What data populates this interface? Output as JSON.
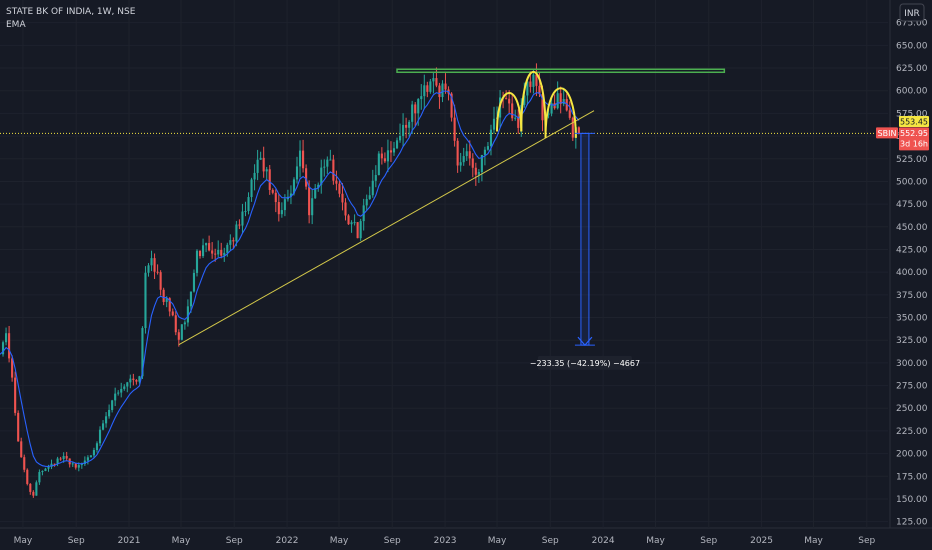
{
  "header": {
    "title": "STATE BK OF INDIA, 1W, NSE",
    "indicator": "EMA",
    "currency_button": "INR"
  },
  "price_labels": {
    "ema_value": "553.45",
    "symbol": "SBIN",
    "last_price": "552.95",
    "countdown": "3d 16h"
  },
  "measurement_label": "−233.35 (−42.19%) −4667",
  "colors": {
    "background": "#161a25",
    "up": "#26a69a",
    "down": "#ef5350",
    "ema": "#2962ff",
    "trendline": "#d4c94a",
    "resistance": "#4caf50",
    "hs_arc": "#f5e642",
    "measure": "#2962ff",
    "price_line": "#f5e642"
  },
  "chart_data": {
    "type": "candlestick",
    "title": "STATE BK OF INDIA, 1W, NSE",
    "currency": "INR",
    "ylim": [
      118,
      700
    ],
    "yticks": [
      125,
      150,
      175,
      200,
      225,
      250,
      275,
      300,
      325,
      350,
      375,
      400,
      425,
      450,
      475,
      500,
      525,
      550,
      575,
      600,
      625,
      650,
      675
    ],
    "xlim": [
      "2020-03-09",
      "2025-10-20"
    ],
    "xticks": [
      {
        "date": "2020-05-01",
        "label": "May"
      },
      {
        "date": "2020-09-01",
        "label": "Sep"
      },
      {
        "date": "2021-01-01",
        "label": "2021"
      },
      {
        "date": "2021-05-01",
        "label": "May"
      },
      {
        "date": "2021-09-01",
        "label": "Sep"
      },
      {
        "date": "2022-01-01",
        "label": "2022"
      },
      {
        "date": "2022-05-01",
        "label": "May"
      },
      {
        "date": "2022-09-01",
        "label": "Sep"
      },
      {
        "date": "2023-01-01",
        "label": "2023"
      },
      {
        "date": "2023-05-01",
        "label": "May"
      },
      {
        "date": "2023-09-01",
        "label": "Sep"
      },
      {
        "date": "2024-01-01",
        "label": "2024"
      },
      {
        "date": "2024-05-01",
        "label": "May"
      },
      {
        "date": "2024-09-01",
        "label": "Sep"
      },
      {
        "date": "2025-01-01",
        "label": "2025"
      },
      {
        "date": "2025-05-01",
        "label": "May"
      },
      {
        "date": "2025-09-01",
        "label": "Sep"
      }
    ],
    "price_waypoints": [
      [
        "2020-03-09",
        315
      ],
      [
        "2020-03-23",
        330
      ],
      [
        "2020-04-06",
        285
      ],
      [
        "2020-04-20",
        210
      ],
      [
        "2020-05-11",
        168
      ],
      [
        "2020-05-25",
        152
      ],
      [
        "2020-06-08",
        180
      ],
      [
        "2020-07-06",
        190
      ],
      [
        "2020-08-03",
        195
      ],
      [
        "2020-09-07",
        185
      ],
      [
        "2020-10-05",
        200
      ],
      [
        "2020-11-02",
        230
      ],
      [
        "2020-11-30",
        265
      ],
      [
        "2020-12-28",
        280
      ],
      [
        "2021-01-25",
        285
      ],
      [
        "2021-02-08",
        400
      ],
      [
        "2021-02-22",
        420
      ],
      [
        "2021-03-15",
        380
      ],
      [
        "2021-04-12",
        350
      ],
      [
        "2021-04-26",
        325
      ],
      [
        "2021-05-17",
        360
      ],
      [
        "2021-06-07",
        420
      ],
      [
        "2021-07-05",
        430
      ],
      [
        "2021-08-02",
        420
      ],
      [
        "2021-09-06",
        445
      ],
      [
        "2021-10-04",
        480
      ],
      [
        "2021-10-25",
        525
      ],
      [
        "2021-11-15",
        505
      ],
      [
        "2021-12-13",
        460
      ],
      [
        "2022-01-10",
        490
      ],
      [
        "2022-01-31",
        535
      ],
      [
        "2022-02-21",
        470
      ],
      [
        "2022-03-14",
        505
      ],
      [
        "2022-04-04",
        525
      ],
      [
        "2022-05-02",
        490
      ],
      [
        "2022-05-23",
        455
      ],
      [
        "2022-06-13",
        445
      ],
      [
        "2022-07-04",
        480
      ],
      [
        "2022-08-01",
        525
      ],
      [
        "2022-08-29",
        535
      ],
      [
        "2022-09-26",
        560
      ],
      [
        "2022-10-17",
        575
      ],
      [
        "2022-11-14",
        600
      ],
      [
        "2022-12-05",
        620
      ],
      [
        "2022-12-19",
        600
      ],
      [
        "2023-01-09",
        595
      ],
      [
        "2023-01-30",
        520
      ],
      [
        "2023-02-20",
        535
      ],
      [
        "2023-03-13",
        510
      ],
      [
        "2023-03-27",
        525
      ],
      [
        "2023-04-17",
        560
      ],
      [
        "2023-05-08",
        585
      ],
      [
        "2023-05-29",
        580
      ],
      [
        "2023-06-19",
        565
      ],
      [
        "2023-07-10",
        600
      ],
      [
        "2023-07-24",
        615
      ],
      [
        "2023-08-14",
        575
      ],
      [
        "2023-08-28",
        565
      ],
      [
        "2023-09-18",
        600
      ],
      [
        "2023-10-09",
        585
      ],
      [
        "2023-10-23",
        555
      ],
      [
        "2023-11-06",
        553
      ]
    ],
    "ema_lag_weeks": 4,
    "last_price": 552.95,
    "ema_last": 553.45,
    "annotations": {
      "resistance_line": {
        "start": "2022-09-12",
        "end": "2024-10-07",
        "price": 622
      },
      "trend_line": {
        "start": "2021-04-26",
        "start_price": 320,
        "end": "2023-12-11",
        "end_price": 578
      },
      "head_and_shoulders": [
        {
          "start": "2023-05-01",
          "end": "2023-06-26",
          "base": 555,
          "peak": 597
        },
        {
          "start": "2023-06-26",
          "end": "2023-08-21",
          "base": 555,
          "peak": 620
        },
        {
          "start": "2023-08-21",
          "end": "2023-10-30",
          "base": 548,
          "peak": 602
        }
      ],
      "measure": {
        "date": "2023-11-20",
        "from": 552.95,
        "to": 319.6,
        "label_price": 300
      }
    }
  }
}
